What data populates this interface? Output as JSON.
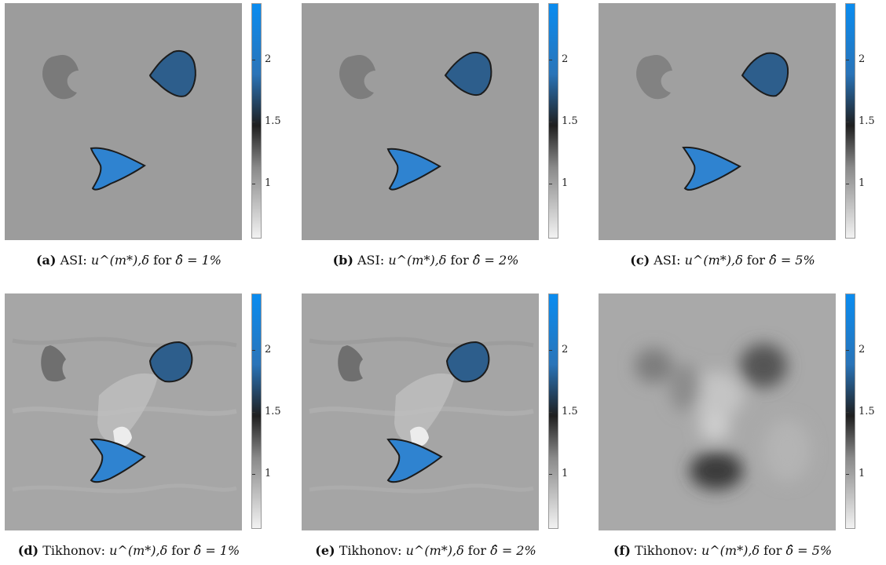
{
  "panels": [
    {
      "label": "(a)",
      "method": "ASI:",
      "math_expr": "u^(m*),δ",
      "for_text": "for",
      "delta_expr": "δ̂ = 1%"
    },
    {
      "label": "(b)",
      "method": "ASI:",
      "math_expr": "u^(m*),δ",
      "for_text": "for",
      "delta_expr": "δ̂ = 2%"
    },
    {
      "label": "(c)",
      "method": "ASI:",
      "math_expr": "u^(m*),δ",
      "for_text": "for",
      "delta_expr": "δ̂ = 5%"
    },
    {
      "label": "(d)",
      "method": "Tikhonov:",
      "math_expr": "u^(m*),δ",
      "for_text": "for",
      "delta_expr": "δ̂ = 1%"
    },
    {
      "label": "(e)",
      "method": "Tikhonov:",
      "math_expr": "u^(m*),δ",
      "for_text": "for",
      "delta_expr": "δ̂ = 2%"
    },
    {
      "label": "(f)",
      "method": "Tikhonov:",
      "math_expr": "u^(m*),δ",
      "for_text": "for",
      "delta_expr": "δ̂ = 5%"
    }
  ],
  "colorbar": {
    "ticks": [
      "2",
      "1.5",
      "1"
    ],
    "tick_values": [
      2,
      1.5,
      1
    ],
    "range": [
      0.55,
      2.45
    ],
    "colors": {
      "top": "#0a8cf0",
      "mid": "#1f1f1f",
      "bottom": "#f2f2f2",
      "blue_mid": "#2a74b8"
    }
  },
  "colors": {
    "background_gray": "#9b9b9b",
    "inclusion_blue": "#2f7fc8",
    "inclusion_dark": "#2d5f8f",
    "inclusion_gray": "#7b7b7b"
  }
}
